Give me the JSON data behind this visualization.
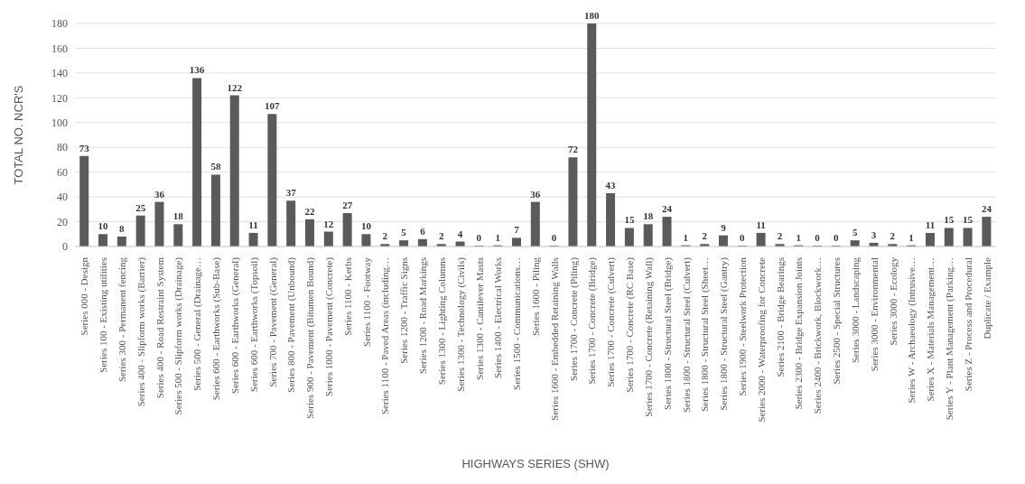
{
  "chart_data": {
    "type": "bar",
    "xlabel": "HIGHWAYS SERIES (SHW)",
    "ylabel": "TOTAL NO. NCR'S",
    "categories": [
      "Series 000 - Design",
      "Series 100 - Existing utilities",
      "Series 300 - Permanent fencing",
      "Series 400 - Slipform works (Barrier)",
      "Series 400 - Road Restraint System",
      "Series 500 - Slipform works (Drainage)",
      "Series 500 - General (Drainage…",
      "Series 600 - Earthworks (Sub-Base)",
      "Series 600 - Earthworks (General)",
      "Series 600 - Earthworks (Topsoil)",
      "Series 700 - Pavement (General)",
      "Series 800 - Pavement (Unbound)",
      "Series 900 - Pavement (Bitumen Bound)",
      "Series 1000 - Pavement (Concrete)",
      "Series 1100 - Kerbs",
      "Series 1100 - Footway",
      "Series 1100 - Paved Areas (including…",
      "Series 1200 - Traffic Signs",
      "Series 1200 - Road Markings",
      "Series 1300 - Lighting Columns",
      "Series 1300 - Technology (Civils)",
      "Series 1300 - Cantilever Masts",
      "Series 1400 - Electrical Works",
      "Series 1500 - Communications…",
      "Series 1600 - Piling",
      "Series 1600 - Embedded Retaining Walls",
      "Series 1700 - Concrete (Piling)",
      "Series 1700 - Concrete (Bridge)",
      "Series 1700 - Concrete (Culvert)",
      "Series 1700 - Concrete (RC Base)",
      "Series 1700 - Concrete (Retaining Wall)",
      "Series 1800 - Structural Steel (Bridge)",
      "Series 1800 - Structural Steel (Culvert)",
      "Series 1800 - Structural Steel (Sheet…",
      "Series 1800 - Structural Steel (Gantry)",
      "Series 1900 - Steelwork Protection",
      "Series 2000 - Waterproofing for Concrete",
      "Series 2100 - Bridge Bearings",
      "Series 2300 - Bridge Expansion Joints",
      "Series 2400 - Brickwork, Blockwork…",
      "Series 2500 - Special Structures",
      "Series 3000 - Landscaping",
      "Series 3000 - Environmental",
      "Series 3000 - Ecology",
      "Series W - Archaeology (Intrusive…",
      "Series X - Materials Management…",
      "Series Y - Plant Management (Parking…",
      "Series Z - Process and Procedural",
      "Duplicate / Example"
    ],
    "values": [
      73,
      10,
      8,
      25,
      36,
      18,
      136,
      58,
      122,
      11,
      107,
      37,
      22,
      12,
      27,
      10,
      2,
      5,
      6,
      2,
      4,
      0,
      1,
      7,
      36,
      0,
      72,
      180,
      43,
      15,
      18,
      24,
      1,
      2,
      9,
      0,
      11,
      2,
      1,
      0,
      0,
      5,
      3,
      2,
      1,
      11,
      15,
      15,
      24
    ],
    "color": "#5a5a5a",
    "ylim": [
      0,
      180
    ],
    "yticks": [
      0,
      20,
      40,
      60,
      80,
      100,
      120,
      140,
      160,
      180
    ],
    "grid": "y",
    "data_labels": true
  }
}
